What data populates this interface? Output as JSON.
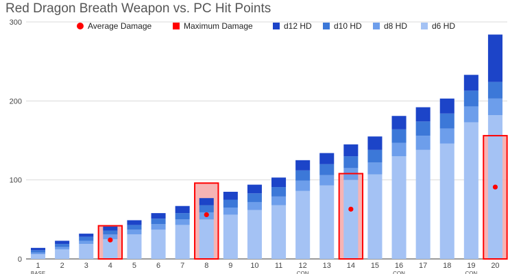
{
  "chart_data": {
    "type": "bar",
    "title": "Red Dragon Breath Weapon vs. PC Hit Points",
    "categories": [
      "1",
      "2",
      "3",
      "4",
      "5",
      "6",
      "7",
      "8",
      "9",
      "10",
      "11",
      "12",
      "13",
      "14",
      "15",
      "16",
      "17",
      "18",
      "19",
      "20"
    ],
    "sublabels": [
      "BASE",
      "",
      "",
      "",
      "",
      "",
      "",
      "",
      "",
      "",
      "",
      "CON",
      "",
      "",
      "",
      "CON",
      "",
      "",
      "CON",
      ""
    ],
    "ylim": [
      0,
      300
    ],
    "yticks": [
      0,
      100,
      200,
      300
    ],
    "stacked_series": [
      {
        "name": "d6 HD",
        "color": "#a4c2f4",
        "values": [
          6,
          12,
          19,
          25,
          31,
          37,
          43,
          50,
          56,
          62,
          68,
          86,
          93,
          100,
          107,
          130,
          138,
          146,
          173,
          182
        ]
      },
      {
        "name": "d8 HD",
        "color": "#6d9eeb",
        "values": [
          2,
          3,
          4,
          6,
          6,
          7,
          7,
          9,
          9,
          10,
          11,
          13,
          13,
          15,
          15,
          17,
          18,
          19,
          20,
          21
        ]
      },
      {
        "name": "d10 HD",
        "color": "#3c78d8",
        "values": [
          3,
          4,
          5,
          5,
          6,
          7,
          8,
          9,
          10,
          11,
          12,
          13,
          14,
          15,
          16,
          17,
          18,
          19,
          20,
          21
        ]
      },
      {
        "name": "d12 HD",
        "color": "#1c44c8",
        "values": [
          3,
          4,
          4,
          5,
          6,
          7,
          9,
          9,
          10,
          11,
          12,
          13,
          14,
          15,
          17,
          17,
          18,
          19,
          20,
          60
        ]
      }
    ],
    "max_damage": {
      "name": "Maximum Damage",
      "color": "#ff0000",
      "fill": "#f4a7a7",
      "points": [
        {
          "level": 4,
          "value": 42
        },
        {
          "level": 8,
          "value": 96
        },
        {
          "level": 14,
          "value": 108
        },
        {
          "level": 20,
          "value": 156
        }
      ]
    },
    "avg_damage": {
      "name": "Average Damage",
      "color": "#ff0000",
      "points": [
        {
          "level": 4,
          "value": 24
        },
        {
          "level": 8,
          "value": 56
        },
        {
          "level": 14,
          "value": 63
        },
        {
          "level": 20,
          "value": 91
        }
      ]
    },
    "legend_order": [
      "Average Damage",
      "Maximum Damage",
      "d12 HD",
      "d10 HD",
      "d8 HD",
      "d6 HD"
    ],
    "legend_position": "top",
    "grid": true
  }
}
